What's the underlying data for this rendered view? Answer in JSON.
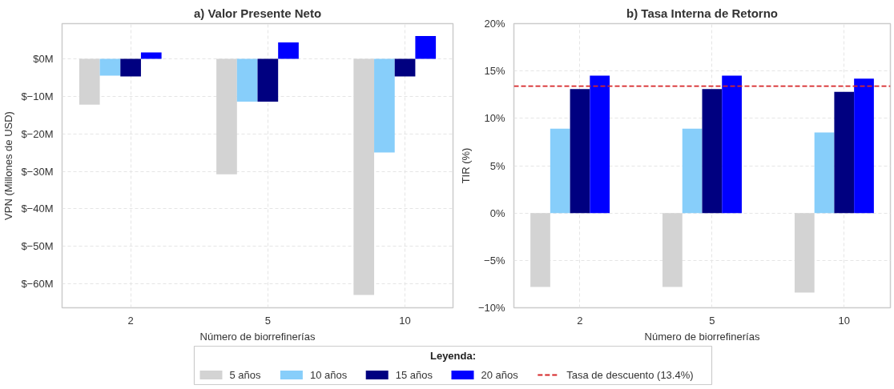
{
  "chart_data": [
    {
      "type": "bar",
      "title": "a) Valor Presente Neto",
      "xlabel": "Número de biorrefinerías",
      "ylabel": "VPN (Millones de USD)",
      "categories": [
        "2",
        "5",
        "10"
      ],
      "series": [
        {
          "name": "5 años",
          "color": "#d3d3d3",
          "values": [
            -12.2,
            -30.8,
            -63.0
          ]
        },
        {
          "name": "10 años",
          "color": "#87cefa",
          "values": [
            -4.5,
            -11.4,
            -25.0
          ]
        },
        {
          "name": "15 años",
          "color": "#000080",
          "values": [
            -4.7,
            -11.4,
            -4.7
          ]
        },
        {
          "name": "20 años",
          "color": "#0000ff",
          "values": [
            1.7,
            4.4,
            6.1
          ]
        }
      ],
      "ylim": [
        -66.4,
        9.4
      ],
      "yticks": [
        {
          "value": 0,
          "label": "$0M"
        },
        {
          "value": -10,
          "label": "$−10M"
        },
        {
          "value": -20,
          "label": "$−20M"
        },
        {
          "value": -30,
          "label": "$−30M"
        },
        {
          "value": -40,
          "label": "$−40M"
        },
        {
          "value": -50,
          "label": "$−50M"
        },
        {
          "value": -60,
          "label": "$−60M"
        }
      ],
      "grid": true,
      "legend": "bottom",
      "legend_title": "Leyenda:"
    },
    {
      "type": "bar",
      "title": "b) Tasa Interna de Retorno",
      "xlabel": "Número de biorrefinerías",
      "ylabel": "TIR (%)",
      "categories": [
        "2",
        "5",
        "10"
      ],
      "series": [
        {
          "color": "#d3d3d3",
          "values": [
            -7.8,
            -7.8,
            -8.4
          ]
        },
        {
          "color": "#87cefa",
          "values": [
            8.9,
            8.9,
            8.5
          ]
        },
        {
          "color": "#000080",
          "values": [
            13.1,
            13.1,
            12.8
          ]
        },
        {
          "color": "#0000ff",
          "values": [
            14.5,
            14.5,
            14.2
          ]
        }
      ],
      "ylim": [
        -10,
        20
      ],
      "yticks": [
        {
          "value": 20,
          "label": "20%"
        },
        {
          "value": 15,
          "label": "15%"
        },
        {
          "value": 10,
          "label": "10%"
        },
        {
          "value": 5,
          "label": "5%"
        },
        {
          "value": 0,
          "label": "0%"
        },
        {
          "value": -5,
          "label": "−5%"
        },
        {
          "value": -10,
          "label": "−10%"
        }
      ],
      "ref_lines": [
        {
          "axis": "y",
          "value": 13.4,
          "label": "Tasa de descuento (13.4%)",
          "color": "#d62728",
          "line_style": "dashed"
        }
      ],
      "grid": true,
      "legend": "bottom"
    }
  ]
}
